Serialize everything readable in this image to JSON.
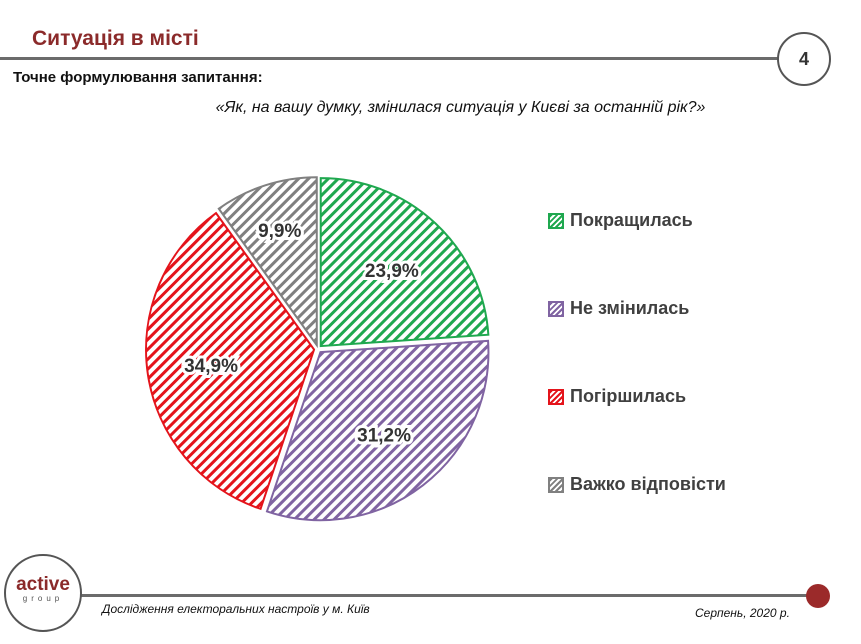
{
  "header": {
    "title": "Ситуація в місті",
    "page_number": "4",
    "subtitle": "Точне формулювання запитання:",
    "question": "«Як, на вашу думку, змінилася ситуація у Києві за останній рік?»"
  },
  "chart_data": {
    "type": "pie",
    "title": "",
    "categories": [
      "Покращилась",
      "Не змінилась",
      "Погіршилась",
      "Важко відповісти"
    ],
    "values": [
      23.9,
      31.2,
      34.9,
      9.9
    ],
    "labels": [
      "23,9%",
      "31,2%",
      "34,9%",
      "9,9%"
    ],
    "colors": [
      "#1fa84f",
      "#8064a2",
      "#e4141b",
      "#808080"
    ],
    "fill": "diagonal-hatch",
    "legend_placement": "right"
  },
  "footer": {
    "logo_main": "active",
    "logo_sub": "group",
    "study": "Дослідження електоральних настроїв у м. Київ",
    "date": "Серпень, 2020 р."
  }
}
